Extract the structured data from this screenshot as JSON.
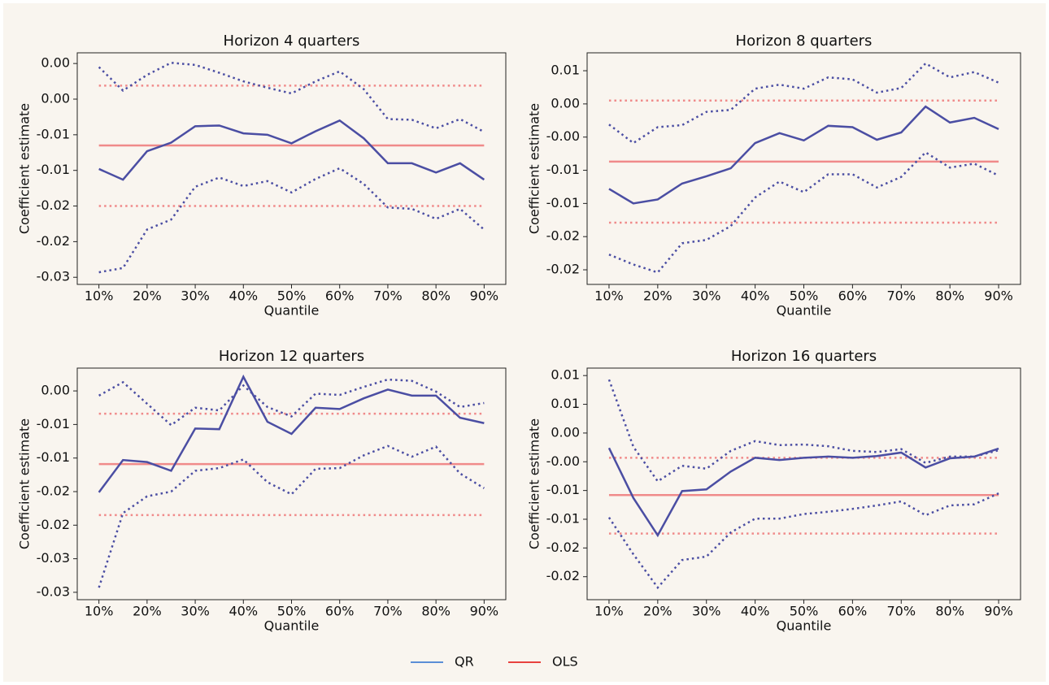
{
  "chart_data": [
    {
      "type": "line",
      "title": "Horizon 4 quarters",
      "xlabel": "Quantile",
      "ylabel": "Coefficient estimate",
      "x": [
        10,
        15,
        20,
        25,
        30,
        35,
        40,
        45,
        50,
        55,
        60,
        65,
        70,
        75,
        80,
        85,
        90
      ],
      "xlim": [
        5.5,
        94.5
      ],
      "xticks": [
        {
          "value": 10,
          "label": "10%"
        },
        {
          "value": 20,
          "label": "20%"
        },
        {
          "value": 30,
          "label": "30%"
        },
        {
          "value": 40,
          "label": "40%"
        },
        {
          "value": 50,
          "label": "50%"
        },
        {
          "value": 60,
          "label": "60%"
        },
        {
          "value": 70,
          "label": "70%"
        },
        {
          "value": 80,
          "label": "80%"
        },
        {
          "value": 90,
          "label": "90%"
        }
      ],
      "ylim": [
        -0.03,
        0.0025
      ],
      "yticks": [
        {
          "value": 0.001,
          "label": "0.00"
        },
        {
          "value": -0.004,
          "label": "0.00"
        },
        {
          "value": -0.009,
          "label": "-0.01"
        },
        {
          "value": -0.014,
          "label": "-0.01"
        },
        {
          "value": -0.019,
          "label": "-0.02"
        },
        {
          "value": -0.024,
          "label": "-0.02"
        },
        {
          "value": -0.029,
          "label": "-0.03"
        }
      ],
      "series": [
        {
          "color": "#4b4ea3",
          "values": [
            -0.0138,
            -0.0153,
            -0.0113,
            -0.0101,
            -0.0078,
            -0.0077,
            -0.0088,
            -0.009,
            -0.0102,
            -0.0085,
            -0.007,
            -0.0095,
            -0.013,
            -0.013,
            -0.0143,
            -0.013,
            -0.0153
          ],
          "upper": [
            0.0005,
            -0.0028,
            -0.0006,
            0.0011,
            0.0008,
            -0.0003,
            -0.0015,
            -0.0024,
            -0.0032,
            -0.0015,
            -0.0001,
            -0.0026,
            -0.0068,
            -0.0069,
            -0.0081,
            -0.0068,
            -0.0086
          ],
          "lower": [
            -0.0283,
            -0.0277,
            -0.0223,
            -0.0209,
            -0.0163,
            -0.015,
            -0.0162,
            -0.0155,
            -0.0171,
            -0.0152,
            -0.0137,
            -0.0159,
            -0.0192,
            -0.0194,
            -0.0208,
            -0.0194,
            -0.0223
          ]
        },
        {
          "color": "#f08a8a",
          "value": -0.0105,
          "upper": -0.0021,
          "lower": -0.019
        }
      ]
    },
    {
      "type": "line",
      "title": "Horizon 8 quarters",
      "xlabel": "Quantile",
      "ylabel": "Coefficient estimate",
      "x": [
        10,
        15,
        20,
        25,
        30,
        35,
        40,
        45,
        50,
        55,
        60,
        65,
        70,
        75,
        80,
        85,
        90
      ],
      "xlim": [
        5.5,
        94.5
      ],
      "xticks": [
        {
          "value": 10,
          "label": "10%"
        },
        {
          "value": 20,
          "label": "20%"
        },
        {
          "value": 30,
          "label": "30%"
        },
        {
          "value": 40,
          "label": "40%"
        },
        {
          "value": 50,
          "label": "50%"
        },
        {
          "value": 60,
          "label": "60%"
        },
        {
          "value": 70,
          "label": "70%"
        },
        {
          "value": 80,
          "label": "80%"
        },
        {
          "value": 90,
          "label": "90%"
        }
      ],
      "ylim": [
        -0.0262,
        0.0087
      ],
      "yticks": [
        {
          "value": 0.006,
          "label": "0.01"
        },
        {
          "value": 0.001,
          "label": "0.00"
        },
        {
          "value": -0.004,
          "label": "-0.00"
        },
        {
          "value": -0.009,
          "label": "-0.01"
        },
        {
          "value": -0.014,
          "label": "-0.01"
        },
        {
          "value": -0.019,
          "label": "-0.02"
        },
        {
          "value": -0.024,
          "label": "-0.02"
        }
      ],
      "series": [
        {
          "color": "#4b4ea3",
          "values": [
            -0.0118,
            -0.014,
            -0.0134,
            -0.011,
            -0.0099,
            -0.0087,
            -0.0049,
            -0.0034,
            -0.0045,
            -0.0023,
            -0.0025,
            -0.0044,
            -0.0033,
            0.0006,
            -0.0018,
            -0.0011,
            -0.0028
          ],
          "upper": [
            -0.0021,
            -0.0049,
            -0.0025,
            -0.0022,
            -0.0002,
            0.0001,
            0.0033,
            0.0039,
            0.0033,
            0.005,
            0.0047,
            0.0027,
            0.0034,
            0.0071,
            0.005,
            0.0058,
            0.0042
          ],
          "lower": [
            -0.0217,
            -0.0232,
            -0.0244,
            -0.02,
            -0.0195,
            -0.0174,
            -0.0131,
            -0.0107,
            -0.0123,
            -0.0096,
            -0.0096,
            -0.0116,
            -0.01,
            -0.0063,
            -0.0086,
            -0.008,
            -0.0098
          ]
        },
        {
          "color": "#f08a8a",
          "value": -0.0077,
          "upper": 0.0015,
          "lower": -0.0169
        }
      ]
    },
    {
      "type": "line",
      "title": "Horizon 12 quarters",
      "xlabel": "Quantile",
      "ylabel": "Coefficient estimate",
      "x": [
        10,
        15,
        20,
        25,
        30,
        35,
        40,
        45,
        50,
        55,
        60,
        65,
        70,
        75,
        80,
        85,
        90
      ],
      "xlim": [
        5.5,
        94.5
      ],
      "xticks": [
        {
          "value": 10,
          "label": "10%"
        },
        {
          "value": 20,
          "label": "20%"
        },
        {
          "value": 30,
          "label": "30%"
        },
        {
          "value": 40,
          "label": "40%"
        },
        {
          "value": 50,
          "label": "50%"
        },
        {
          "value": 60,
          "label": "60%"
        },
        {
          "value": 70,
          "label": "70%"
        },
        {
          "value": 80,
          "label": "80%"
        },
        {
          "value": 90,
          "label": "90%"
        }
      ],
      "ylim": [
        -0.0311,
        0.0034
      ],
      "yticks": [
        {
          "value": 0.0,
          "label": "0.00"
        },
        {
          "value": -0.005,
          "label": "-0.01"
        },
        {
          "value": -0.01,
          "label": "-0.01"
        },
        {
          "value": -0.015,
          "label": "-0.02"
        },
        {
          "value": -0.02,
          "label": "-0.02"
        },
        {
          "value": -0.025,
          "label": "-0.03"
        },
        {
          "value": -0.03,
          "label": "-0.03"
        }
      ],
      "series": [
        {
          "color": "#4b4ea3",
          "values": [
            -0.0151,
            -0.0103,
            -0.0106,
            -0.0119,
            -0.0056,
            -0.0057,
            0.0021,
            -0.0046,
            -0.0064,
            -0.0025,
            -0.0027,
            -0.0011,
            0.0002,
            -0.0007,
            -0.0007,
            -0.004,
            -0.0048
          ],
          "upper": [
            -0.0007,
            0.0013,
            -0.0019,
            -0.0051,
            -0.0025,
            -0.0029,
            0.0008,
            -0.0024,
            -0.0038,
            -0.0004,
            -0.0006,
            0.0006,
            0.0017,
            0.0015,
            -0.0001,
            -0.0024,
            -0.0018
          ],
          "lower": [
            -0.0293,
            -0.0182,
            -0.0157,
            -0.015,
            -0.0119,
            -0.0115,
            -0.0102,
            -0.0136,
            -0.0154,
            -0.0116,
            -0.0115,
            -0.0096,
            -0.0082,
            -0.0098,
            -0.0083,
            -0.0123,
            -0.0145
          ]
        },
        {
          "color": "#f08a8a",
          "value": -0.0109,
          "upper": -0.0034,
          "lower": -0.0185
        }
      ]
    },
    {
      "type": "line",
      "title": "Horizon 16 quarters",
      "xlabel": "Quantile",
      "ylabel": "Coefficient estimate",
      "x": [
        10,
        15,
        20,
        25,
        30,
        35,
        40,
        45,
        50,
        55,
        60,
        65,
        70,
        75,
        80,
        85,
        90
      ],
      "xlim": [
        5.5,
        94.5
      ],
      "xticks": [
        {
          "value": 10,
          "label": "10%"
        },
        {
          "value": 20,
          "label": "20%"
        },
        {
          "value": 30,
          "label": "30%"
        },
        {
          "value": 40,
          "label": "40%"
        },
        {
          "value": 50,
          "label": "50%"
        },
        {
          "value": 60,
          "label": "60%"
        },
        {
          "value": 70,
          "label": "70%"
        },
        {
          "value": 80,
          "label": "80%"
        },
        {
          "value": 90,
          "label": "90%"
        }
      ],
      "ylim": [
        -0.027,
        0.0133
      ],
      "yticks": [
        {
          "value": 0.012,
          "label": "0.01"
        },
        {
          "value": 0.007,
          "label": "0.01"
        },
        {
          "value": 0.002,
          "label": "0.00"
        },
        {
          "value": -0.003,
          "label": "-0.00"
        },
        {
          "value": -0.008,
          "label": "-0.01"
        },
        {
          "value": -0.013,
          "label": "-0.01"
        },
        {
          "value": -0.018,
          "label": "-0.02"
        },
        {
          "value": -0.023,
          "label": "-0.02"
        }
      ],
      "series": [
        {
          "color": "#4b4ea3",
          "values": [
            -0.0006,
            -0.0093,
            -0.0158,
            -0.0081,
            -0.0078,
            -0.0047,
            -0.0023,
            -0.0027,
            -0.0023,
            -0.0021,
            -0.0023,
            -0.002,
            -0.0014,
            -0.004,
            -0.0024,
            -0.0021,
            -0.0007
          ],
          "upper": [
            0.0113,
            -0.0004,
            -0.0064,
            -0.0037,
            -0.0042,
            -0.0011,
            0.0006,
            -0.0001,
            0.0,
            -0.0003,
            -0.0011,
            -0.0013,
            -0.0008,
            -0.0032,
            -0.0021,
            -0.0021,
            -0.001
          ],
          "lower": [
            -0.0127,
            -0.0191,
            -0.0249,
            -0.0201,
            -0.0195,
            -0.0153,
            -0.0129,
            -0.0129,
            -0.0121,
            -0.0117,
            -0.0112,
            -0.0106,
            -0.0099,
            -0.0123,
            -0.0106,
            -0.0104,
            -0.0085
          ]
        },
        {
          "color": "#f08a8a",
          "value": -0.0088,
          "upper": -0.0023,
          "lower": -0.0155
        }
      ]
    }
  ],
  "legend": {
    "position": "bottom",
    "entries": [
      {
        "name": "QR",
        "color": "#5b8fd6"
      },
      {
        "name": "OLS",
        "color": "#e8423f"
      }
    ]
  }
}
